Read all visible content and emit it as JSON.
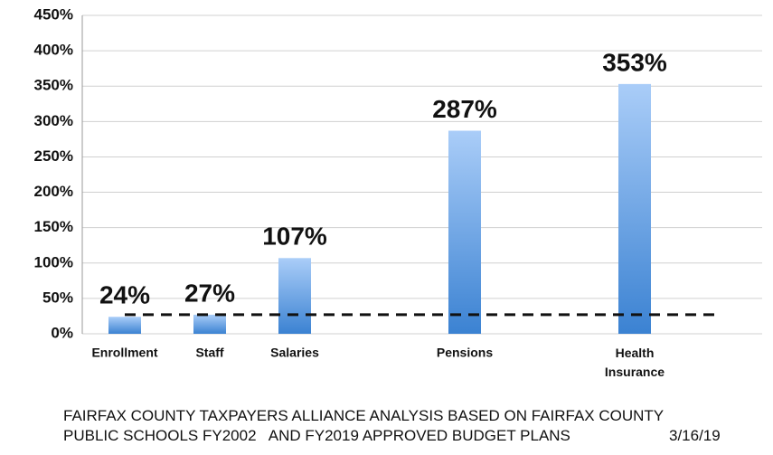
{
  "chart_data": {
    "type": "bar",
    "categories": [
      "Enrollment",
      "Staff",
      "Salaries",
      null,
      "Pensions",
      null,
      "Health Insurance",
      null
    ],
    "values": [
      24,
      27,
      107,
      null,
      287,
      null,
      353,
      null
    ],
    "value_labels": [
      "24%",
      "27%",
      "107%",
      null,
      "287%",
      null,
      "353%",
      null
    ],
    "ylim": [
      0,
      450
    ],
    "yticks": [
      {
        "value": 0,
        "label": "0%"
      },
      {
        "value": 50,
        "label": "50%"
      },
      {
        "value": 100,
        "label": "100%"
      },
      {
        "value": 150,
        "label": "150%"
      },
      {
        "value": 200,
        "label": "200%"
      },
      {
        "value": 250,
        "label": "250%"
      },
      {
        "value": 300,
        "label": "300%"
      },
      {
        "value": 350,
        "label": "350%"
      },
      {
        "value": 400,
        "label": "400%"
      },
      {
        "value": 450,
        "label": "450%"
      }
    ],
    "grid": true,
    "reference_line": 27,
    "color_top": "#aacdf8",
    "color_bottom": "#3b82d2"
  },
  "footer": {
    "lines": [
      "FAIRFAX COUNTY TAXPAYERS ALLIANCE ANALYSIS BASED ON FAIRFAX COUNTY",
      "PUBLIC SCHOOLS FY2002   AND FY2019 APPROVED BUDGET PLANS"
    ],
    "date": "3/16/19"
  }
}
